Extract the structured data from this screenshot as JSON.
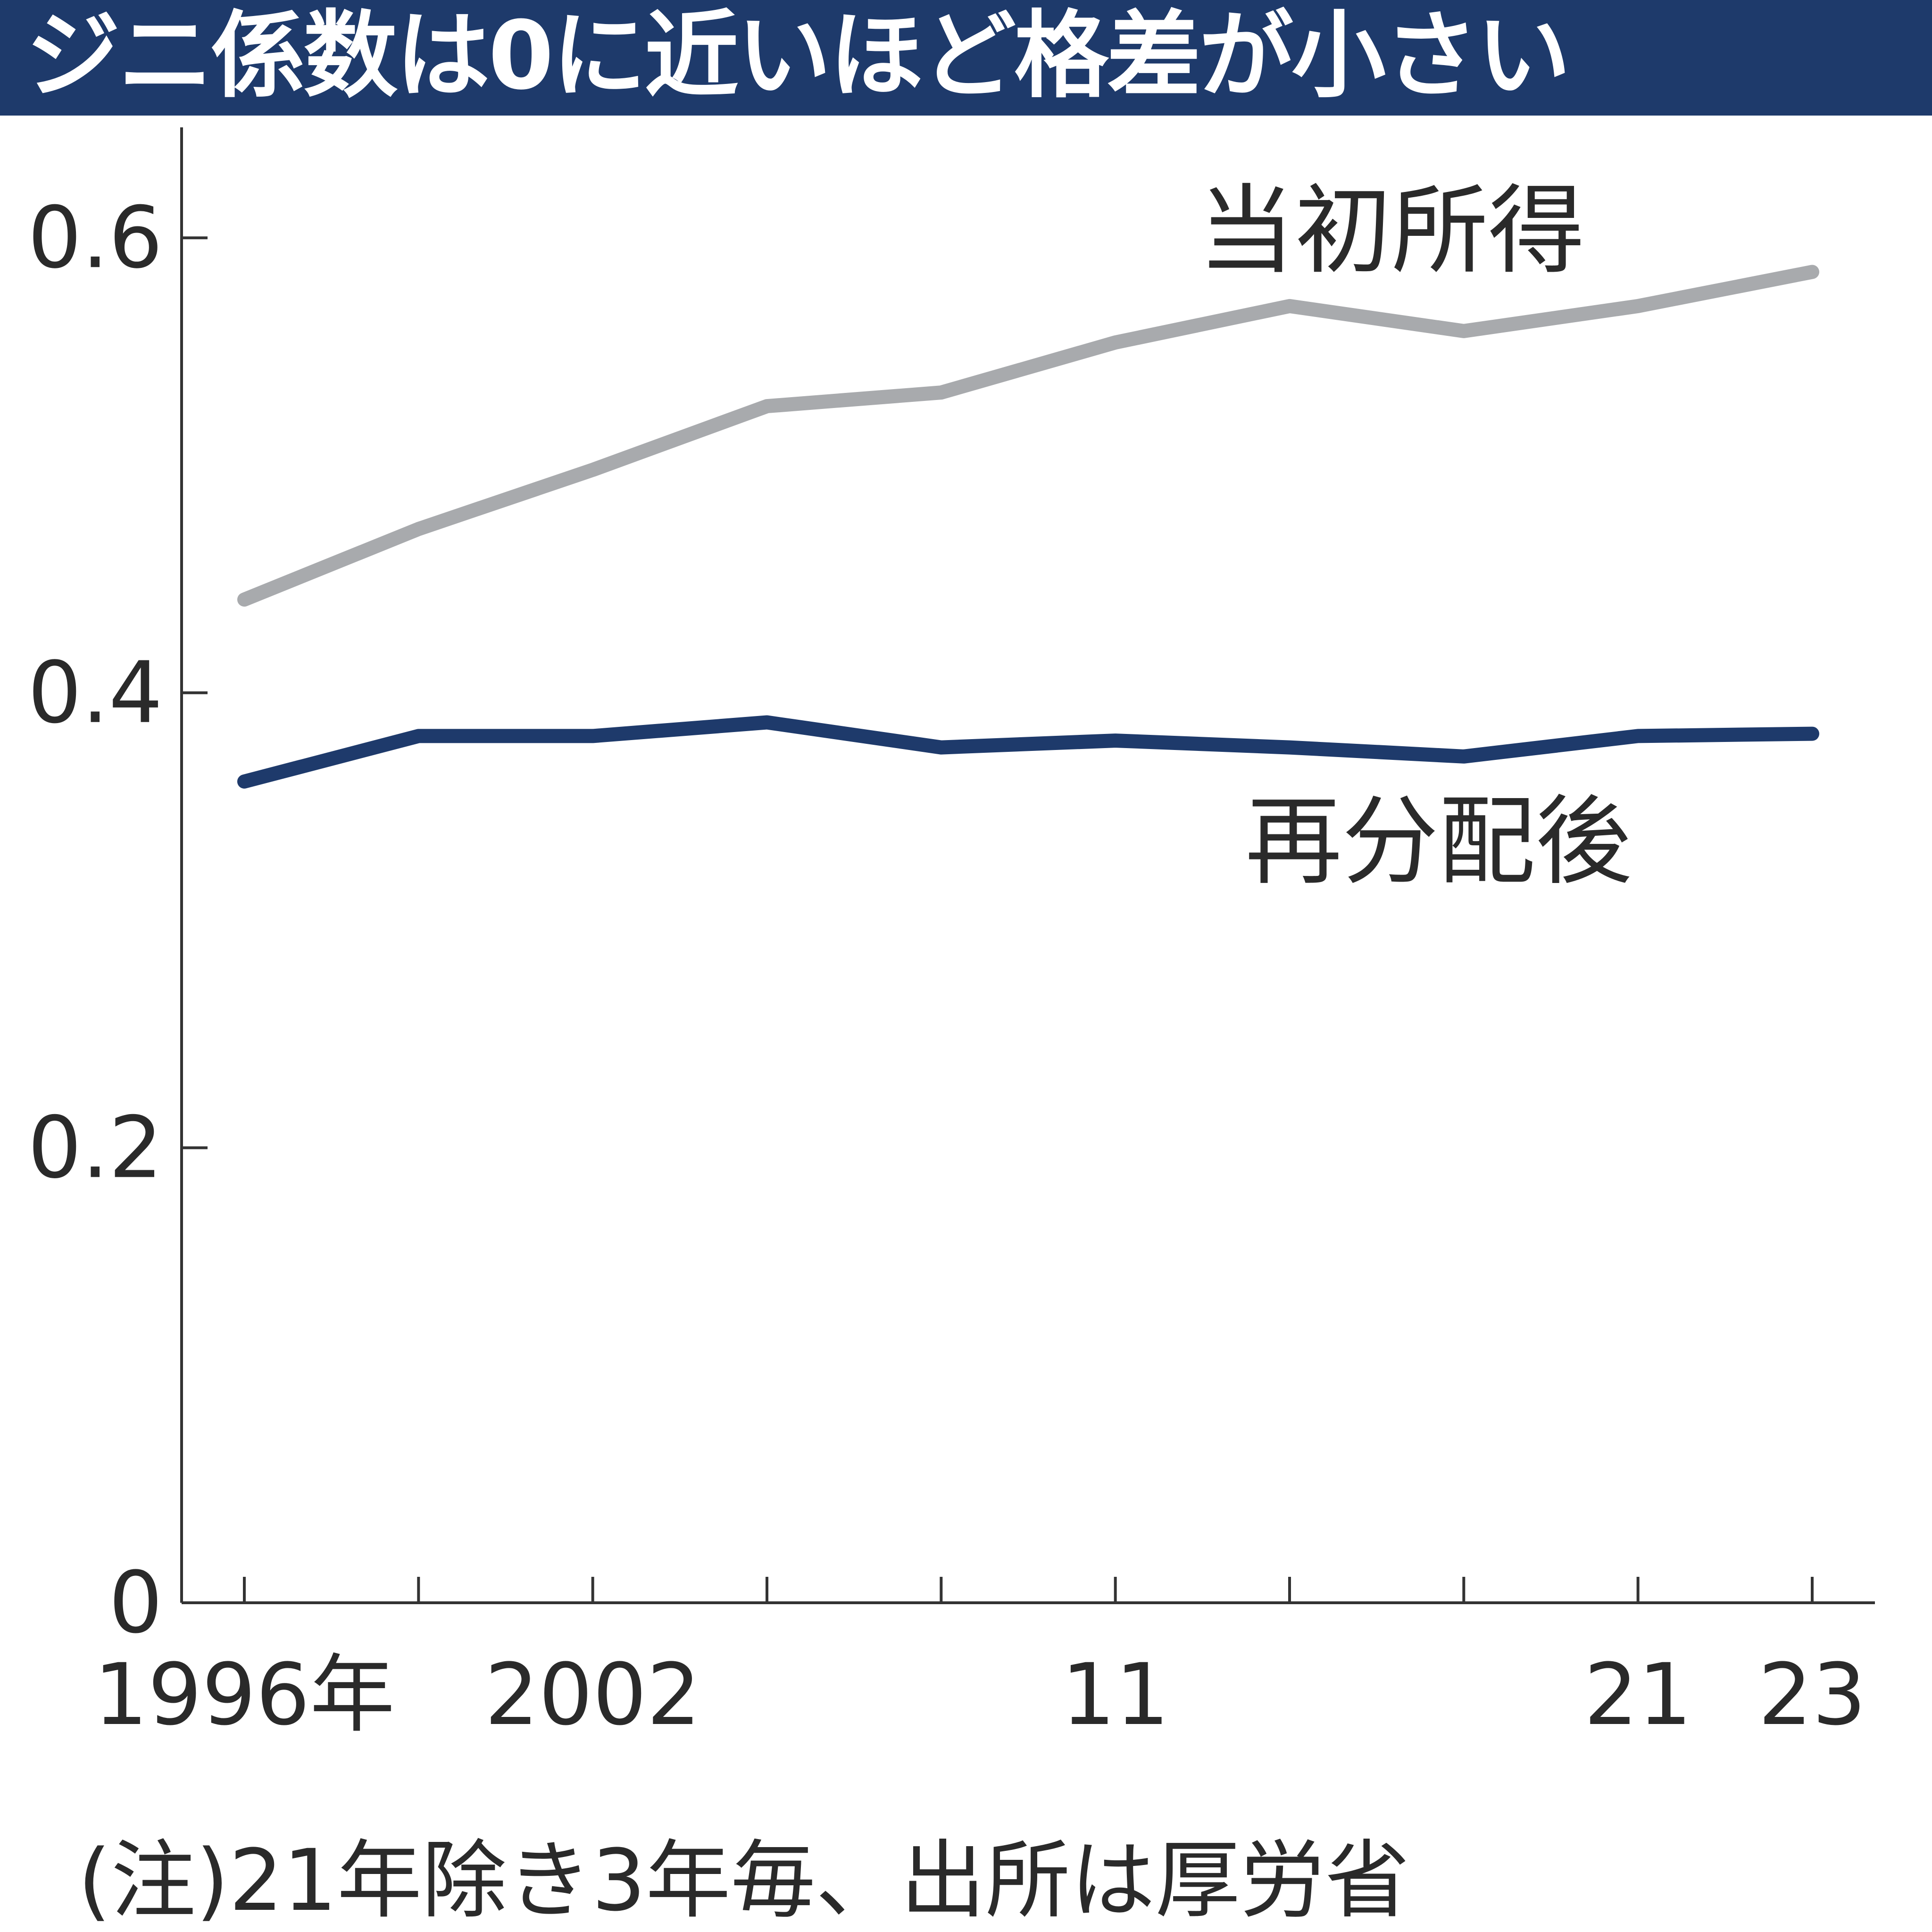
{
  "title": "ジニ係数は0に近いほど格差が小さい",
  "note": "(注)21年除き3年毎、出所は厚労省",
  "colors": {
    "title_background": "#1e3a6b",
    "title_text": "#ffffff",
    "initial_income_line": "#a8aaad",
    "after_redistribution_line": "#1e3a6b",
    "axis": "#333333"
  },
  "chart_data": {
    "type": "line",
    "title": "ジニ係数は0に近いほど格差が小さい",
    "xlabel": "",
    "ylabel": "",
    "x": [
      1996,
      1999,
      2002,
      2005,
      2008,
      2011,
      2014,
      2017,
      2021,
      2023
    ],
    "x_ticks": [
      {
        "value": 1996,
        "label": "1996年"
      },
      {
        "value": 1999,
        "label": ""
      },
      {
        "value": 2002,
        "label": "2002"
      },
      {
        "value": 2005,
        "label": ""
      },
      {
        "value": 2008,
        "label": ""
      },
      {
        "value": 2011,
        "label": "11"
      },
      {
        "value": 2014,
        "label": ""
      },
      {
        "value": 2017,
        "label": ""
      },
      {
        "value": 2021,
        "label": "21"
      },
      {
        "value": 2023,
        "label": "23"
      }
    ],
    "y_ticks": [
      {
        "value": 0,
        "label": "0"
      },
      {
        "value": 0.2,
        "label": "0.2"
      },
      {
        "value": 0.4,
        "label": "0.4"
      },
      {
        "value": 0.6,
        "label": "0.6"
      }
    ],
    "ylim": [
      0,
      0.64
    ],
    "grid": false,
    "series": [
      {
        "name": "当初所得",
        "values": [
          0.441,
          0.472,
          0.498,
          0.526,
          0.532,
          0.554,
          0.57,
          0.559,
          0.57,
          0.585
        ]
      },
      {
        "name": "再分配後",
        "values": [
          0.361,
          0.381,
          0.381,
          0.387,
          0.376,
          0.379,
          0.376,
          0.372,
          0.381,
          0.382
        ]
      }
    ]
  }
}
